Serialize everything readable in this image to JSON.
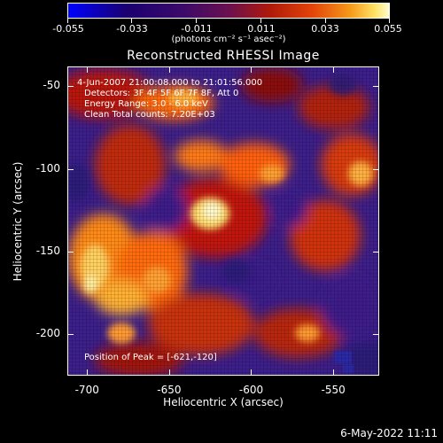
{
  "colorbar": {
    "tick_labels": [
      "-0.055",
      "-0.033",
      "-0.011",
      "0.011",
      "0.033",
      "0.055"
    ],
    "units_label": "(photons cm⁻² s⁻¹ asec⁻²)"
  },
  "title": "Reconstructed RHESSI Image",
  "annotations": {
    "time_range": "4-Jun-2007 21:00:08.000 to 21:01:56.000",
    "detectors": "Detectors: 3F 4F 5F 6F 7F 8F, Att 0",
    "energy": "Energy Range: 3.0 - 6.0 keV",
    "clean": "Clean     Total counts: 7.20E+03",
    "peak": "Position of Peak = [-621,-120]"
  },
  "axes": {
    "x_label": "Heliocentric X (arcsec)",
    "y_label": "Heliocentric Y (arcsec)",
    "x_ticks": [
      "-700",
      "-650",
      "-600",
      "-550"
    ],
    "y_ticks": [
      "-50",
      "-100",
      "-150",
      "-200"
    ],
    "x_tick_values": [
      -700,
      -650,
      -600,
      -550
    ],
    "y_tick_values": [
      -50,
      -100,
      -150,
      -200
    ],
    "x_range": [
      -712,
      -522
    ],
    "y_range": [
      -225,
      -38
    ]
  },
  "footer": {
    "timestamp": "6-May-2022 11:11"
  },
  "colors": {
    "background": "#000000",
    "foreground": "#ffffff"
  }
}
